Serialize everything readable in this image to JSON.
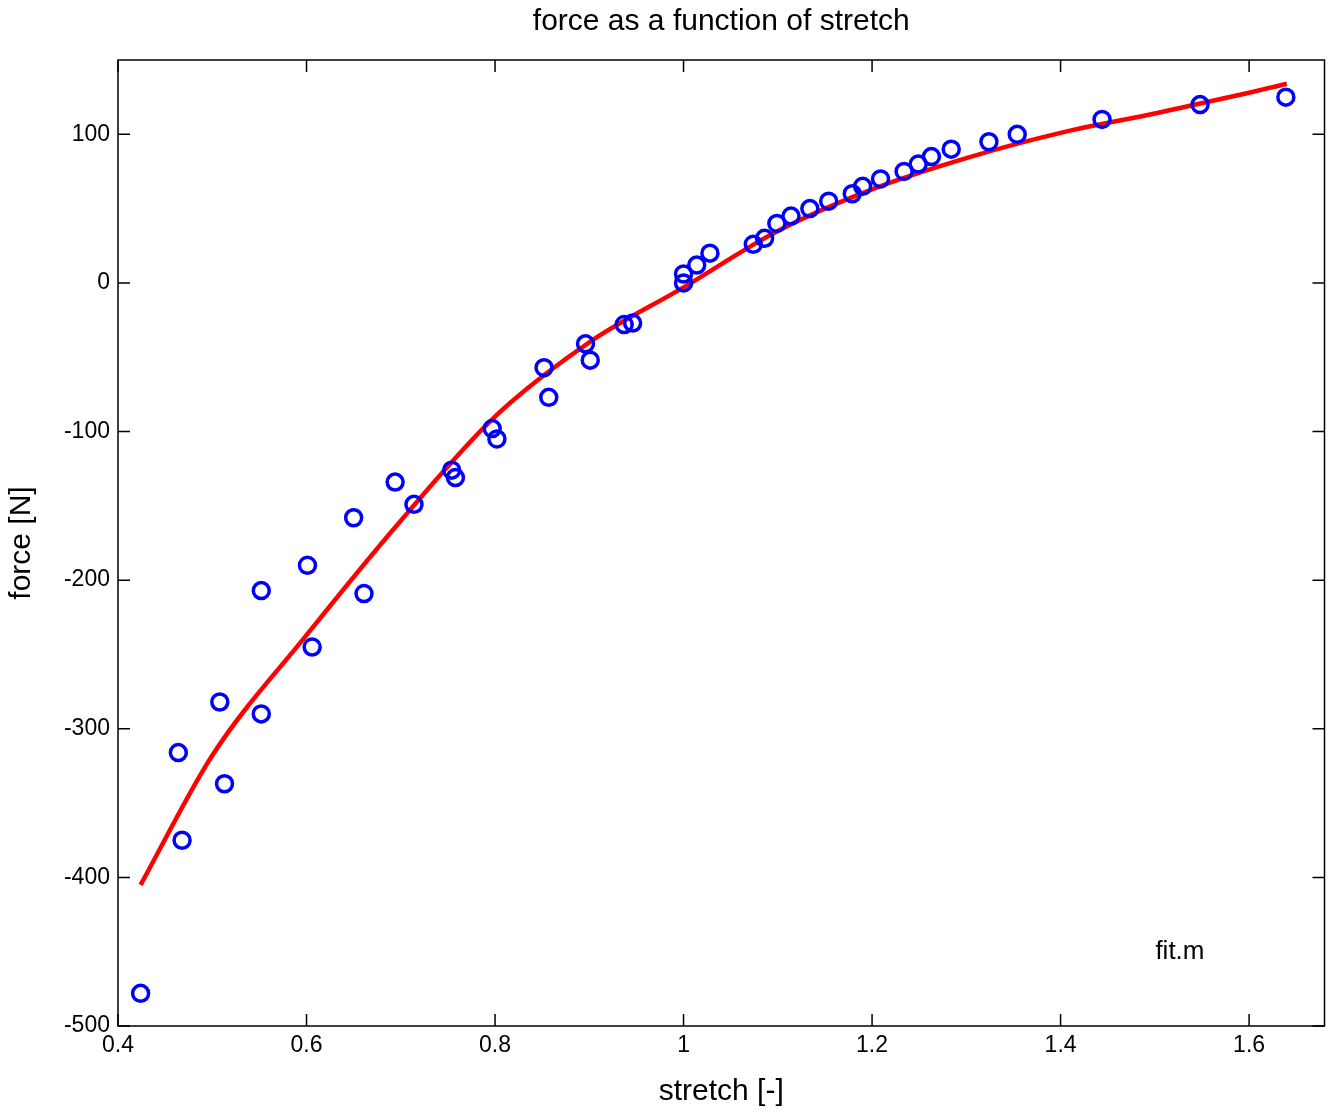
{
  "chart_data": {
    "type": "scatter",
    "title": "force as a function of stretch",
    "xlabel": "stretch [-]",
    "ylabel": "force [N]",
    "xlim": [
      0.4,
      1.68
    ],
    "xticks": [
      0.4,
      0.6,
      0.8,
      1,
      1.2,
      1.4,
      1.6
    ],
    "ylim": [
      -500,
      150
    ],
    "yticks": [
      -500,
      -400,
      -300,
      -200,
      -100,
      0,
      100
    ],
    "grid": false,
    "legend": false,
    "marker": "circle",
    "annotations": [
      "fit.m"
    ],
    "series": [
      {
        "type": "scatter",
        "color": "#0000ff",
        "x": [
          0.424,
          0.464,
          0.468,
          0.508,
          0.513,
          0.552,
          0.552,
          0.601,
          0.606,
          0.65,
          0.661,
          0.694,
          0.714,
          0.754,
          0.758,
          0.797,
          0.802,
          0.852,
          0.857,
          0.896,
          0.901,
          0.937,
          0.946,
          1.0,
          1.0,
          1.014,
          1.028,
          1.074,
          1.086,
          1.099,
          1.114,
          1.134,
          1.154,
          1.179,
          1.19,
          1.209,
          1.234,
          1.249,
          1.263,
          1.284,
          1.324,
          1.354,
          1.444,
          1.548,
          1.639
        ],
        "values": [
          -478,
          -316,
          -375,
          -282,
          -337,
          -207,
          -290,
          -190,
          -245,
          -158,
          -209,
          -134,
          -149,
          -126,
          -131,
          -98,
          -105,
          -57,
          -77,
          -41,
          -52,
          -28,
          -27,
          0,
          6,
          12,
          20,
          26,
          30,
          40,
          45,
          50,
          55,
          60,
          65,
          70,
          75,
          80,
          85,
          90,
          95,
          100,
          110,
          120,
          125
        ]
      },
      {
        "type": "line",
        "color": "#ff0000",
        "marker": "none",
        "x": [
          0.424,
          0.5,
          0.6,
          0.7,
          0.8,
          0.9,
          1.0,
          1.1,
          1.2,
          1.3,
          1.4,
          1.5,
          1.6,
          1.64
        ],
        "values": [
          -405,
          -318,
          -237,
          -160,
          -90,
          -40,
          -3,
          35,
          63,
          84,
          101,
          114,
          128,
          134
        ]
      }
    ]
  }
}
